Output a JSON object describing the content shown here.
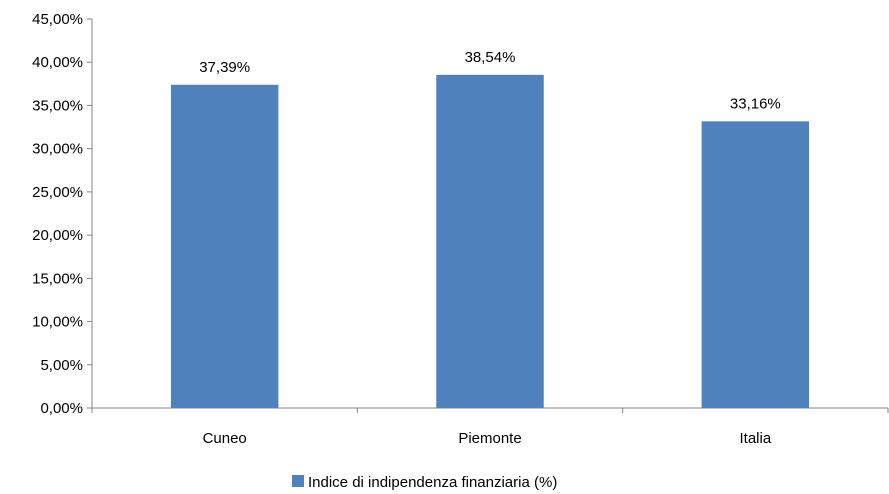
{
  "chart_data": {
    "type": "bar",
    "categories": [
      "Cuneo",
      "Piemonte",
      "Italia"
    ],
    "series": [
      {
        "name": "Indice di indipendenza finanziaria (%)",
        "values": [
          37.39,
          38.54,
          33.16
        ],
        "color": "#4F81BD"
      }
    ],
    "data_labels": [
      "37,39%",
      "38,54%",
      "33,16%"
    ],
    "y_ticks": [
      "0,00%",
      "5,00%",
      "10,00%",
      "15,00%",
      "20,00%",
      "25,00%",
      "30,00%",
      "35,00%",
      "40,00%",
      "45,00%"
    ],
    "ylim": [
      0,
      45
    ],
    "y_step": 5,
    "grid": false,
    "legend_position": "bottom",
    "axis_color": "#868686"
  }
}
